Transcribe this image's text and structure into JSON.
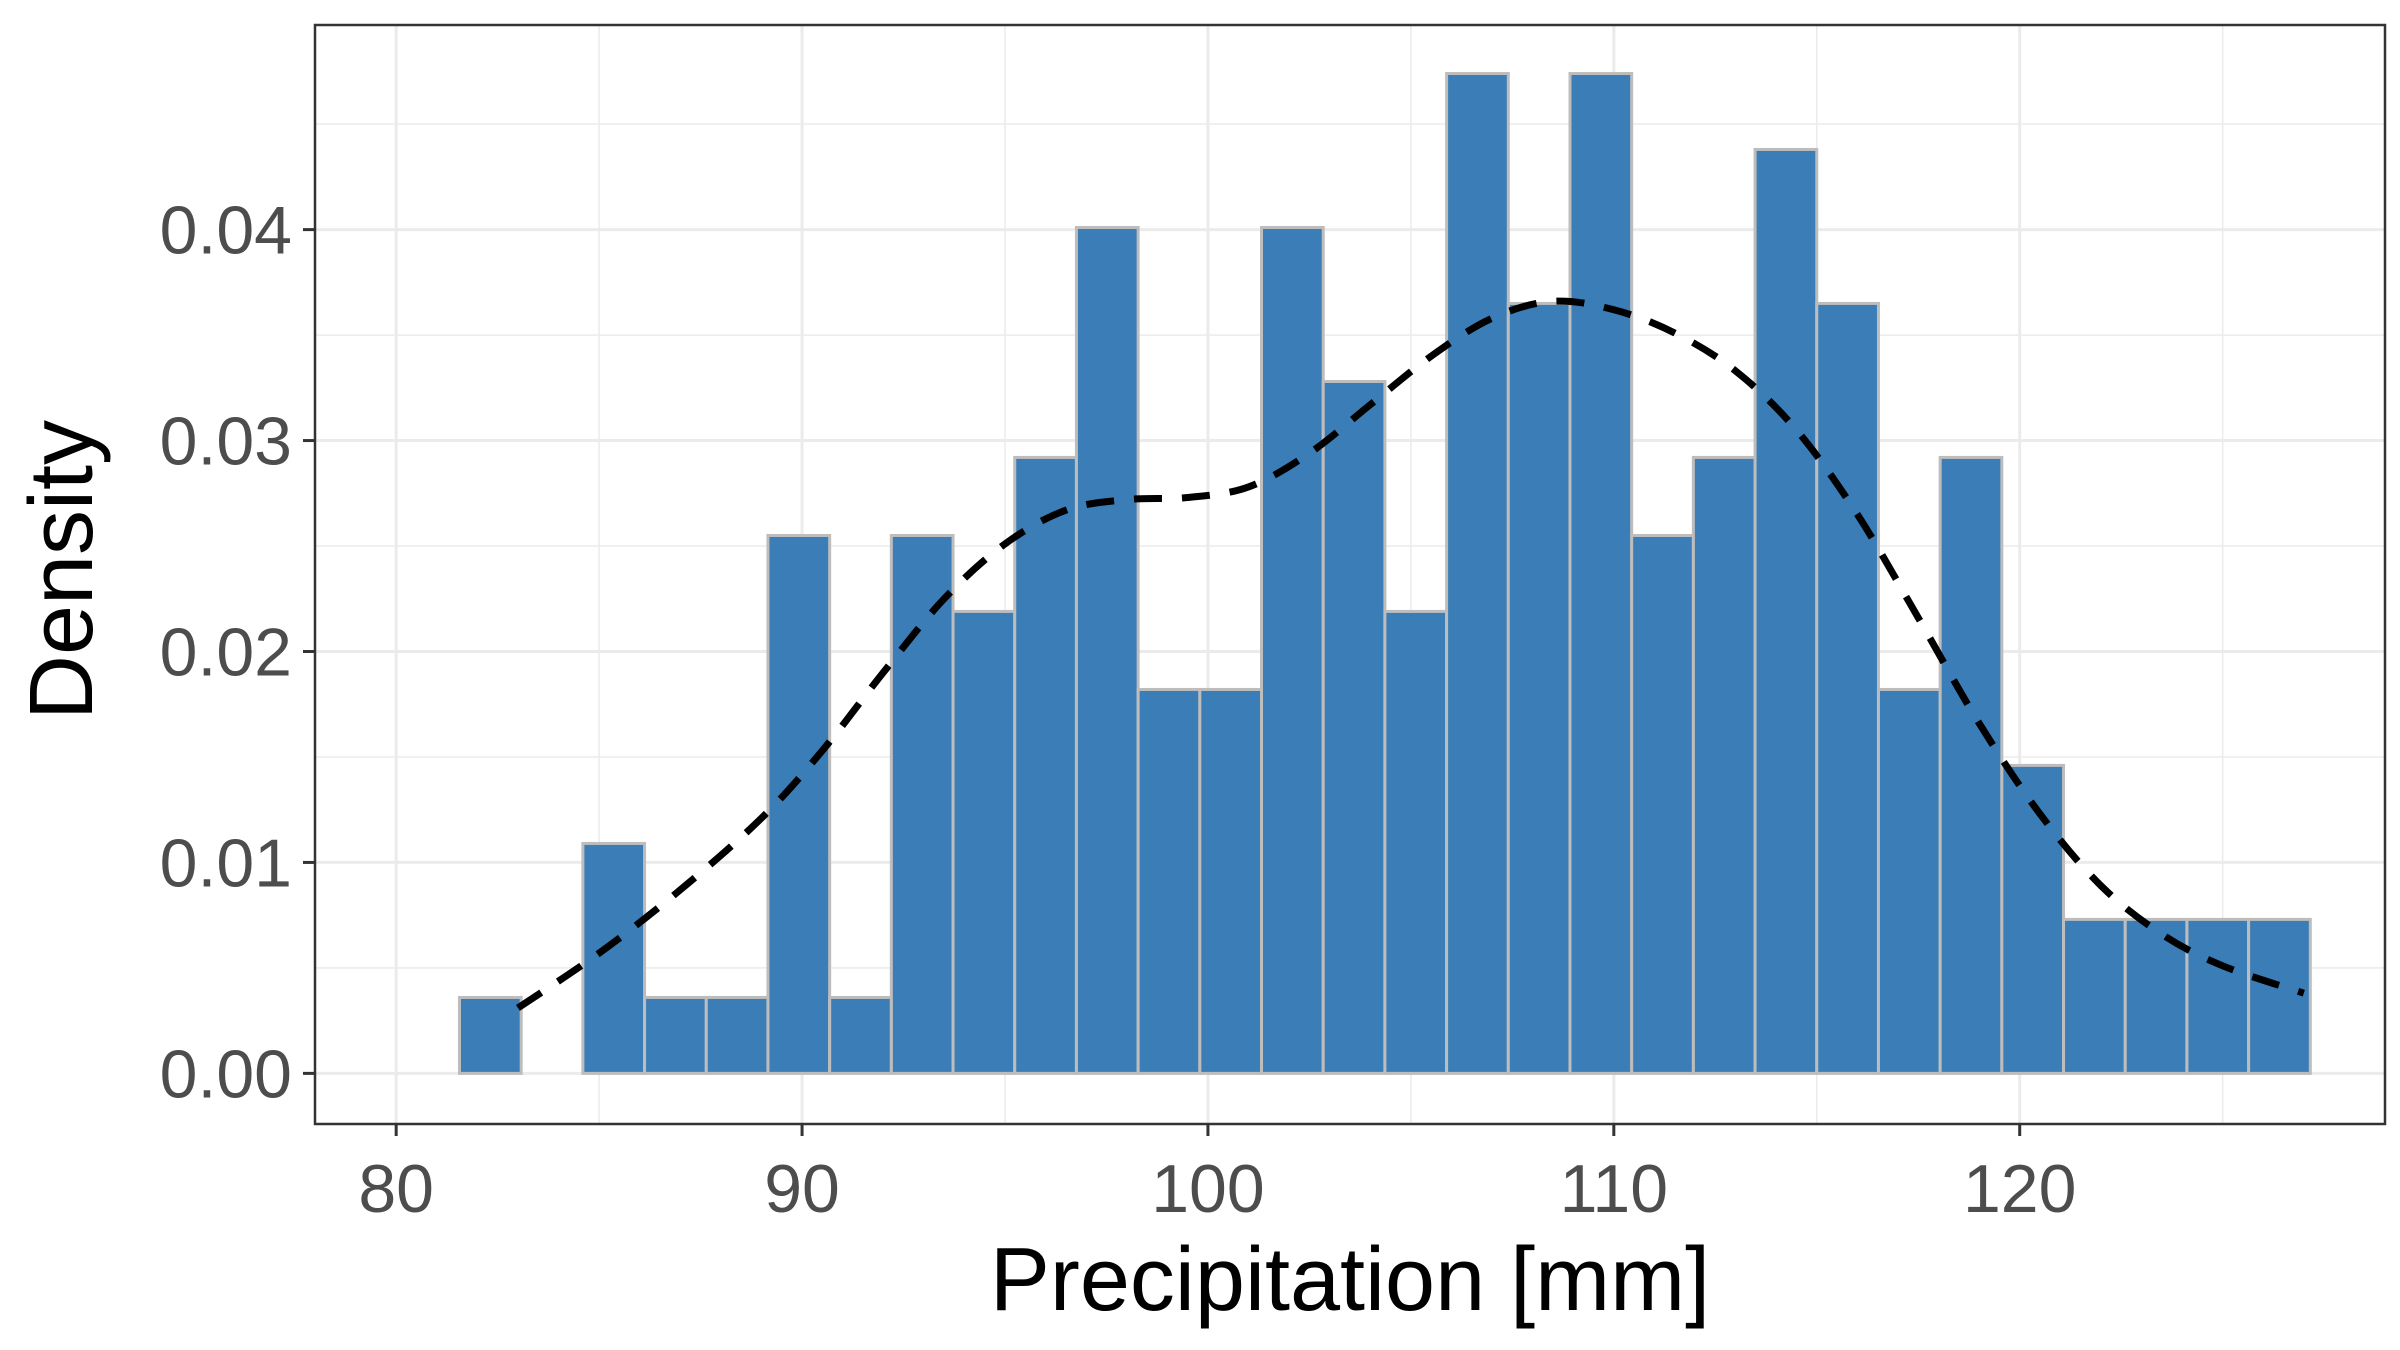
{
  "chart_data": {
    "type": "bar",
    "xlabel": "Precipitation [mm]",
    "ylabel": "Density",
    "xlim": [
      78,
      129
    ],
    "ylim": [
      -0.0024,
      0.0497
    ],
    "x_ticks": [
      80,
      90,
      100,
      110,
      120
    ],
    "x_tick_labels": [
      "80",
      "90",
      "100",
      "110",
      "120"
    ],
    "y_ticks": [
      0,
      0.01,
      0.02,
      0.03,
      0.04
    ],
    "y_tick_labels": [
      "0.00",
      "0.01",
      "0.02",
      "0.03",
      "0.04"
    ],
    "bin_width": 1.52,
    "bins_start": [
      81.56,
      83.08,
      84.6,
      86.12,
      87.64,
      89.16,
      90.68,
      92.2,
      93.72,
      95.24,
      96.76,
      98.28,
      99.8,
      101.32,
      102.84,
      104.36,
      105.88,
      107.4,
      108.92,
      110.44,
      111.96,
      113.48,
      115.0,
      116.52,
      118.04,
      119.56,
      121.08,
      122.6,
      124.12,
      125.64
    ],
    "values": [
      0.0036,
      0.0,
      0.0109,
      0.0036,
      0.0036,
      0.0255,
      0.0036,
      0.0255,
      0.0219,
      0.0292,
      0.0401,
      0.0182,
      0.0182,
      0.0401,
      0.0328,
      0.0219,
      0.0474,
      0.0365,
      0.0474,
      0.0255,
      0.0292,
      0.0438,
      0.0365,
      0.0182,
      0.0292,
      0.0146,
      0.0073,
      0.0073,
      0.0073,
      0.0073
    ],
    "density_curve": {
      "style": "dashed",
      "x": [
        83,
        85,
        87,
        89,
        90.5,
        92,
        93.5,
        95,
        96.5,
        98,
        99.5,
        101,
        102.5,
        104,
        105.5,
        107,
        108.5,
        110,
        111.5,
        113,
        114.5,
        116,
        117.5,
        119,
        120.5,
        122,
        123.5,
        125,
        127
      ],
      "y": [
        0.0031,
        0.0057,
        0.0087,
        0.0121,
        0.0153,
        0.019,
        0.0225,
        0.0251,
        0.0267,
        0.0272,
        0.0273,
        0.0278,
        0.0294,
        0.0317,
        0.034,
        0.0358,
        0.0366,
        0.0362,
        0.0351,
        0.0333,
        0.0305,
        0.0265,
        0.0216,
        0.0166,
        0.0123,
        0.0089,
        0.0066,
        0.0051,
        0.0038
      ]
    },
    "colors": {
      "bar_fill": "#3a7db7",
      "bar_stroke": "#bdbdbd",
      "curve": "#000000",
      "grid": "#ebebeb",
      "panel_border": "#333333"
    },
    "grid": true,
    "legend": "none"
  }
}
